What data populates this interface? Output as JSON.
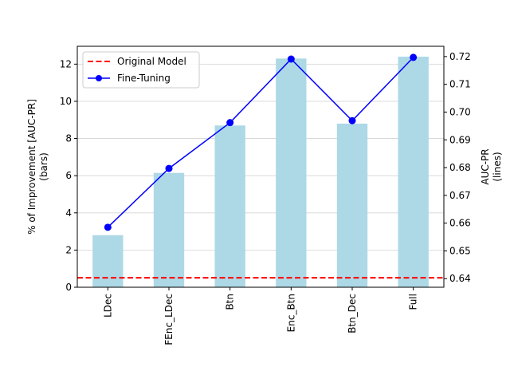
{
  "chart_data": {
    "type": "bar",
    "categories": [
      "LDec",
      "FEnc_LDec",
      "Btn",
      "Enc_Btn",
      "Btn_Dec",
      "Full"
    ],
    "bars": {
      "name": "",
      "values": [
        2.8,
        6.15,
        8.7,
        12.3,
        8.8,
        12.4
      ],
      "color": "#add8e6"
    },
    "line": {
      "name": "Fine-Tuning",
      "values": [
        0.6585,
        0.6797,
        0.6962,
        0.7191,
        0.6969,
        0.7197
      ],
      "color": "#0000ff"
    },
    "reference": {
      "name": "Original Model",
      "value": 0.6403,
      "color": "#ff0000"
    },
    "ylabel_left_lines": [
      "% of Improvement [AUC-PR]",
      "(bars)"
    ],
    "ylabel_right_lines": [
      "AUC-PR",
      "(lines)"
    ],
    "ylim_left": [
      0,
      12.96
    ],
    "ylim_right": [
      0.6369,
      0.7237
    ],
    "yticks_left": [
      0,
      2,
      4,
      6,
      8,
      10,
      12
    ],
    "yticks_right": [
      0.64,
      0.65,
      0.66,
      0.67,
      0.68,
      0.69,
      0.7,
      0.71,
      0.72
    ],
    "yticks_right_labels": [
      "0.64",
      "0.65",
      "0.66",
      "0.67",
      "0.68",
      "0.69",
      "0.70",
      "0.71",
      "0.72"
    ],
    "grid": "horizontal",
    "legend_placement": "upper-left",
    "legend": [
      {
        "label": "Original Model",
        "style": "dashed-line",
        "color": "#ff0000"
      },
      {
        "label": "Fine-Tuning",
        "style": "line-marker",
        "color": "#0000ff"
      }
    ]
  }
}
